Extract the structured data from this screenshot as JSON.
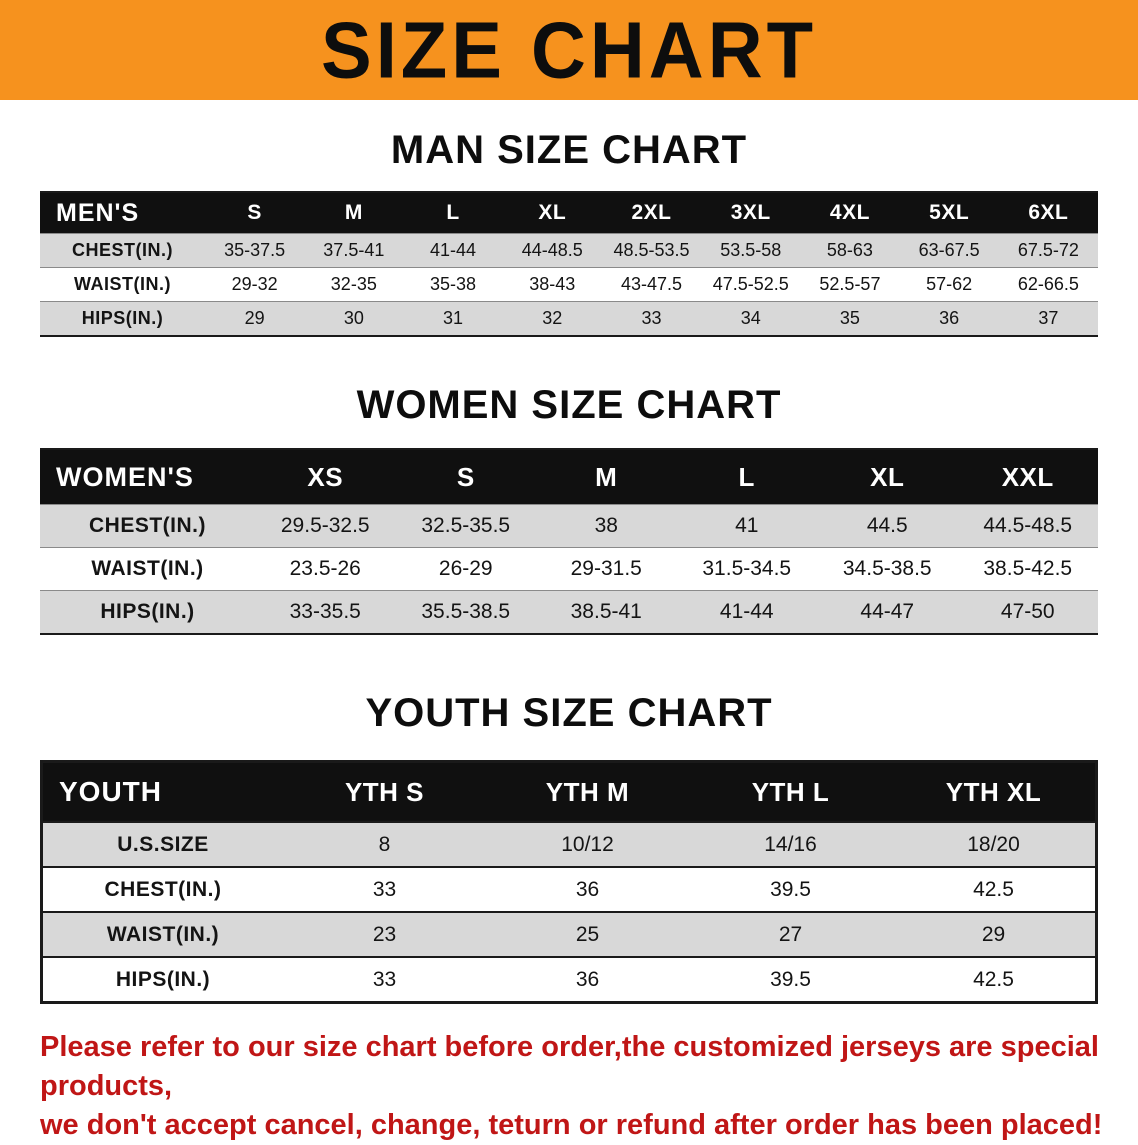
{
  "banner": {
    "title": "SIZE CHART"
  },
  "colors": {
    "banner_bg": "#F6921E",
    "header_bg": "#101010",
    "row_shade": "#D8D8D8",
    "notice_red": "#C01616"
  },
  "sections": [
    {
      "heading": "MAN SIZE CHART",
      "table": {
        "header": [
          "MEN'S",
          "S",
          "M",
          "L",
          "XL",
          "2XL",
          "3XL",
          "4XL",
          "5XL",
          "6XL"
        ],
        "rows": [
          {
            "label": "CHEST(IN.)",
            "values": [
              "35-37.5",
              "37.5-41",
              "41-44",
              "44-48.5",
              "48.5-53.5",
              "53.5-58",
              "58-63",
              "63-67.5",
              "67.5-72"
            ]
          },
          {
            "label": "WAIST(IN.)",
            "values": [
              "29-32",
              "32-35",
              "35-38",
              "38-43",
              "43-47.5",
              "47.5-52.5",
              "52.5-57",
              "57-62",
              "62-66.5"
            ]
          },
          {
            "label": "HIPS(IN.)",
            "values": [
              "29",
              "30",
              "31",
              "32",
              "33",
              "34",
              "35",
              "36",
              "37"
            ]
          }
        ]
      }
    },
    {
      "heading": "WOMEN SIZE CHART",
      "table": {
        "header": [
          "WOMEN'S",
          "XS",
          "S",
          "M",
          "L",
          "XL",
          "XXL"
        ],
        "rows": [
          {
            "label": "CHEST(IN.)",
            "values": [
              "29.5-32.5",
              "32.5-35.5",
              "38",
              "41",
              "44.5",
              "44.5-48.5"
            ]
          },
          {
            "label": "WAIST(IN.)",
            "values": [
              "23.5-26",
              "26-29",
              "29-31.5",
              "31.5-34.5",
              "34.5-38.5",
              "38.5-42.5"
            ]
          },
          {
            "label": "HIPS(IN.)",
            "values": [
              "33-35.5",
              "35.5-38.5",
              "38.5-41",
              "41-44",
              "44-47",
              "47-50"
            ]
          }
        ]
      }
    },
    {
      "heading": "YOUTH SIZE CHART",
      "table": {
        "header": [
          "YOUTH",
          "YTH S",
          "YTH M",
          "YTH L",
          "YTH XL"
        ],
        "rows": [
          {
            "label": "U.S.SIZE",
            "values": [
              "8",
              "10/12",
              "14/16",
              "18/20"
            ]
          },
          {
            "label": "CHEST(IN.)",
            "values": [
              "33",
              "36",
              "39.5",
              "42.5"
            ]
          },
          {
            "label": "WAIST(IN.)",
            "values": [
              "23",
              "25",
              "27",
              "29"
            ]
          },
          {
            "label": "HIPS(IN.)",
            "values": [
              "33",
              "36",
              "39.5",
              "42.5"
            ]
          }
        ]
      }
    }
  ],
  "notice": {
    "line1": "Please refer to our size chart before order,the customized jerseys are special products,",
    "line2": "we don't accept cancel, change, teturn or refund after order has been placed!"
  }
}
